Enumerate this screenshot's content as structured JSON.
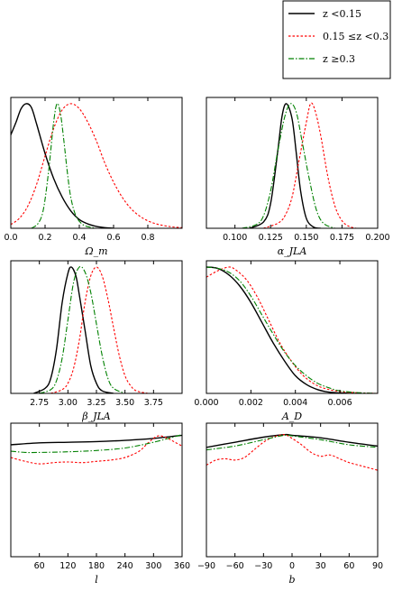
{
  "legend": {
    "entries": [
      {
        "label": "z <0.15",
        "color": "#000000",
        "dash": "solid"
      },
      {
        "label": "0.15 ≤z <0.3",
        "color": "#ff0000",
        "dash": "dotted"
      },
      {
        "label": "z ≥0.3",
        "color": "#008000",
        "dash": "dashdot"
      }
    ],
    "placement": "top-right"
  },
  "chart_data": [
    {
      "type": "line",
      "xlabel": "Ω_m",
      "ylabel": "",
      "xlim": [
        0,
        1.0
      ],
      "xticks": [
        0.0,
        0.2,
        0.4,
        0.6,
        0.8
      ],
      "xtick_labels": [
        "0.0",
        "0.2",
        "0.4",
        "0.6",
        "0.8"
      ],
      "series": [
        {
          "name": "z <0.15",
          "x": [
            0,
            0.03,
            0.06,
            0.09,
            0.12,
            0.15,
            0.2,
            0.25,
            0.3,
            0.35,
            0.4,
            0.45,
            0.5,
            0.55,
            0.6
          ],
          "y": [
            0.75,
            0.85,
            0.96,
            1.0,
            0.97,
            0.84,
            0.6,
            0.4,
            0.25,
            0.14,
            0.07,
            0.035,
            0.015,
            0.005,
            0
          ]
        },
        {
          "name": "0.15 ≤z <0.3",
          "x": [
            0,
            0.05,
            0.1,
            0.15,
            0.2,
            0.25,
            0.3,
            0.35,
            0.4,
            0.45,
            0.5,
            0.55,
            0.6,
            0.65,
            0.7,
            0.75,
            0.8,
            0.85,
            0.9,
            0.95,
            1.0
          ],
          "y": [
            0.03,
            0.08,
            0.18,
            0.35,
            0.58,
            0.8,
            0.95,
            1.0,
            0.96,
            0.85,
            0.7,
            0.52,
            0.37,
            0.25,
            0.16,
            0.1,
            0.06,
            0.035,
            0.02,
            0.01,
            0.005
          ]
        },
        {
          "name": "z ≥0.3",
          "x": [
            0.12,
            0.16,
            0.19,
            0.22,
            0.25,
            0.27,
            0.29,
            0.31,
            0.33,
            0.35,
            0.38,
            0.42,
            0.46,
            0.5
          ],
          "y": [
            0,
            0.04,
            0.15,
            0.45,
            0.85,
            1.0,
            0.92,
            0.7,
            0.45,
            0.25,
            0.1,
            0.03,
            0.01,
            0
          ]
        }
      ]
    },
    {
      "type": "line",
      "xlabel": "α_JLA",
      "ylabel": "",
      "xlim": [
        0.08,
        0.2
      ],
      "xticks": [
        0.1,
        0.125,
        0.15,
        0.175,
        0.2
      ],
      "xtick_labels": [
        "0.100",
        "0.125",
        "0.150",
        "0.175",
        "0.200"
      ],
      "series": [
        {
          "name": "z <0.15",
          "x": [
            0.11,
            0.12,
            0.125,
            0.13,
            0.133,
            0.136,
            0.14,
            0.143,
            0.146,
            0.15,
            0.155,
            0.16
          ],
          "y": [
            0,
            0.05,
            0.2,
            0.62,
            0.9,
            1.0,
            0.88,
            0.6,
            0.3,
            0.08,
            0.01,
            0
          ]
        },
        {
          "name": "0.15 ≤z <0.3",
          "x": [
            0.12,
            0.13,
            0.135,
            0.14,
            0.145,
            0.15,
            0.153,
            0.156,
            0.16,
            0.165,
            0.17,
            0.175,
            0.18,
            0.185
          ],
          "y": [
            0,
            0.04,
            0.1,
            0.25,
            0.55,
            0.85,
            1.0,
            0.95,
            0.75,
            0.42,
            0.18,
            0.06,
            0.015,
            0
          ]
        },
        {
          "name": "z ≥0.3",
          "x": [
            0.105,
            0.115,
            0.12,
            0.125,
            0.13,
            0.135,
            0.139,
            0.143,
            0.147,
            0.152,
            0.157,
            0.162,
            0.17
          ],
          "y": [
            0,
            0.03,
            0.1,
            0.3,
            0.62,
            0.9,
            1.0,
            0.93,
            0.7,
            0.4,
            0.15,
            0.04,
            0
          ]
        }
      ]
    },
    {
      "type": "line",
      "xlabel": "β_JLA",
      "ylabel": "",
      "xlim": [
        2.5,
        4.0
      ],
      "xticks": [
        2.75,
        3.0,
        3.25,
        3.5,
        3.75
      ],
      "xtick_labels": [
        "2.75",
        "3.00",
        "3.25",
        "3.50",
        "3.75"
      ],
      "series": [
        {
          "name": "z <0.15",
          "x": [
            2.7,
            2.8,
            2.85,
            2.9,
            2.95,
            3.0,
            3.03,
            3.07,
            3.1,
            3.15,
            3.2,
            3.25,
            3.3,
            3.4
          ],
          "y": [
            0,
            0.04,
            0.12,
            0.35,
            0.72,
            0.95,
            1.0,
            0.93,
            0.78,
            0.5,
            0.22,
            0.08,
            0.02,
            0
          ]
        },
        {
          "name": "0.15 ≤z <0.3",
          "x": [
            2.85,
            2.95,
            3.0,
            3.05,
            3.1,
            3.15,
            3.2,
            3.25,
            3.3,
            3.35,
            3.4,
            3.45,
            3.5,
            3.55,
            3.6,
            3.7
          ],
          "y": [
            0,
            0.03,
            0.08,
            0.2,
            0.42,
            0.72,
            0.93,
            1.0,
            0.93,
            0.75,
            0.52,
            0.3,
            0.14,
            0.06,
            0.02,
            0
          ]
        },
        {
          "name": "z ≥0.3",
          "x": [
            2.75,
            2.85,
            2.9,
            2.95,
            3.0,
            3.05,
            3.1,
            3.15,
            3.2,
            3.25,
            3.3,
            3.35,
            3.4,
            3.5
          ],
          "y": [
            0,
            0.03,
            0.1,
            0.28,
            0.58,
            0.88,
            1.0,
            0.96,
            0.8,
            0.55,
            0.3,
            0.12,
            0.04,
            0
          ]
        }
      ]
    },
    {
      "type": "line",
      "xlabel": "A_D",
      "ylabel": "",
      "xlim": [
        0,
        0.0077
      ],
      "xticks": [
        0.0,
        0.002,
        0.004,
        0.006
      ],
      "xtick_labels": [
        "0.000",
        "0.002",
        "0.004",
        "0.006"
      ],
      "series": [
        {
          "name": "z <0.15",
          "x": [
            0,
            0.0005,
            0.001,
            0.0015,
            0.002,
            0.0025,
            0.003,
            0.0035,
            0.004,
            0.0045,
            0.005,
            0.0055,
            0.006,
            0.0065
          ],
          "y": [
            1.0,
            0.99,
            0.94,
            0.85,
            0.72,
            0.56,
            0.4,
            0.26,
            0.14,
            0.07,
            0.03,
            0.01,
            0.004,
            0
          ]
        },
        {
          "name": "0.15 ≤z <0.3",
          "x": [
            0,
            0.0005,
            0.001,
            0.0013,
            0.0018,
            0.0023,
            0.0028,
            0.0033,
            0.0038,
            0.0043,
            0.0048,
            0.0053,
            0.006,
            0.0068,
            0.0077
          ],
          "y": [
            0.92,
            0.97,
            1.0,
            0.98,
            0.9,
            0.76,
            0.58,
            0.4,
            0.26,
            0.15,
            0.08,
            0.04,
            0.015,
            0.005,
            0
          ]
        },
        {
          "name": "z ≥0.3",
          "x": [
            0,
            0.0005,
            0.001,
            0.0015,
            0.002,
            0.0025,
            0.003,
            0.0035,
            0.004,
            0.0045,
            0.005,
            0.0055,
            0.006,
            0.0068,
            0.0077
          ],
          "y": [
            1.0,
            0.99,
            0.96,
            0.89,
            0.77,
            0.62,
            0.47,
            0.33,
            0.22,
            0.14,
            0.08,
            0.045,
            0.02,
            0.006,
            0
          ]
        }
      ]
    },
    {
      "type": "line",
      "xlabel": "l",
      "ylabel": "",
      "xlim": [
        0,
        360
      ],
      "xticks": [
        60,
        120,
        180,
        240,
        300,
        360
      ],
      "xtick_labels": [
        "60",
        "120",
        "180",
        "240",
        "300",
        "360"
      ],
      "series": [
        {
          "name": "z <0.15",
          "x": [
            0,
            60,
            120,
            180,
            240,
            300,
            360
          ],
          "y": [
            0.88,
            0.895,
            0.9,
            0.905,
            0.915,
            0.93,
            0.955
          ]
        },
        {
          "name": "0.15 ≤z <0.3",
          "x": [
            0,
            30,
            60,
            90,
            120,
            150,
            180,
            210,
            240,
            270,
            290,
            310,
            330,
            345,
            360
          ],
          "y": [
            0.78,
            0.75,
            0.73,
            0.74,
            0.745,
            0.74,
            0.75,
            0.76,
            0.78,
            0.83,
            0.9,
            0.95,
            0.93,
            0.9,
            0.87
          ]
        },
        {
          "name": "z ≥0.3",
          "x": [
            0,
            30,
            60,
            120,
            180,
            240,
            300,
            360
          ],
          "y": [
            0.83,
            0.82,
            0.82,
            0.825,
            0.835,
            0.855,
            0.9,
            0.96
          ]
        }
      ]
    },
    {
      "type": "line",
      "xlabel": "b",
      "ylabel": "",
      "xlim": [
        -90,
        90
      ],
      "xticks": [
        -90,
        -60,
        -30,
        0,
        30,
        60,
        90
      ],
      "xtick_labels": [
        "−90",
        "−60",
        "−30",
        "0",
        "30",
        "60",
        "90"
      ],
      "series": [
        {
          "name": "z <0.15",
          "x": [
            -90,
            -60,
            -30,
            -8,
            0,
            30,
            60,
            90
          ],
          "y": [
            0.86,
            0.9,
            0.94,
            0.96,
            0.955,
            0.935,
            0.9,
            0.87
          ]
        },
        {
          "name": "0.15 ≤z <0.3",
          "x": [
            -90,
            -80,
            -70,
            -60,
            -50,
            -40,
            -30,
            -20,
            -8,
            0,
            10,
            20,
            30,
            40,
            50,
            60,
            70,
            80,
            90
          ],
          "y": [
            0.72,
            0.76,
            0.77,
            0.76,
            0.78,
            0.84,
            0.9,
            0.94,
            0.96,
            0.93,
            0.88,
            0.82,
            0.79,
            0.8,
            0.77,
            0.74,
            0.72,
            0.7,
            0.68
          ]
        },
        {
          "name": "z ≥0.3",
          "x": [
            -90,
            -60,
            -30,
            -8,
            0,
            30,
            60,
            90
          ],
          "y": [
            0.84,
            0.87,
            0.92,
            0.955,
            0.95,
            0.92,
            0.88,
            0.86
          ]
        }
      ]
    }
  ]
}
